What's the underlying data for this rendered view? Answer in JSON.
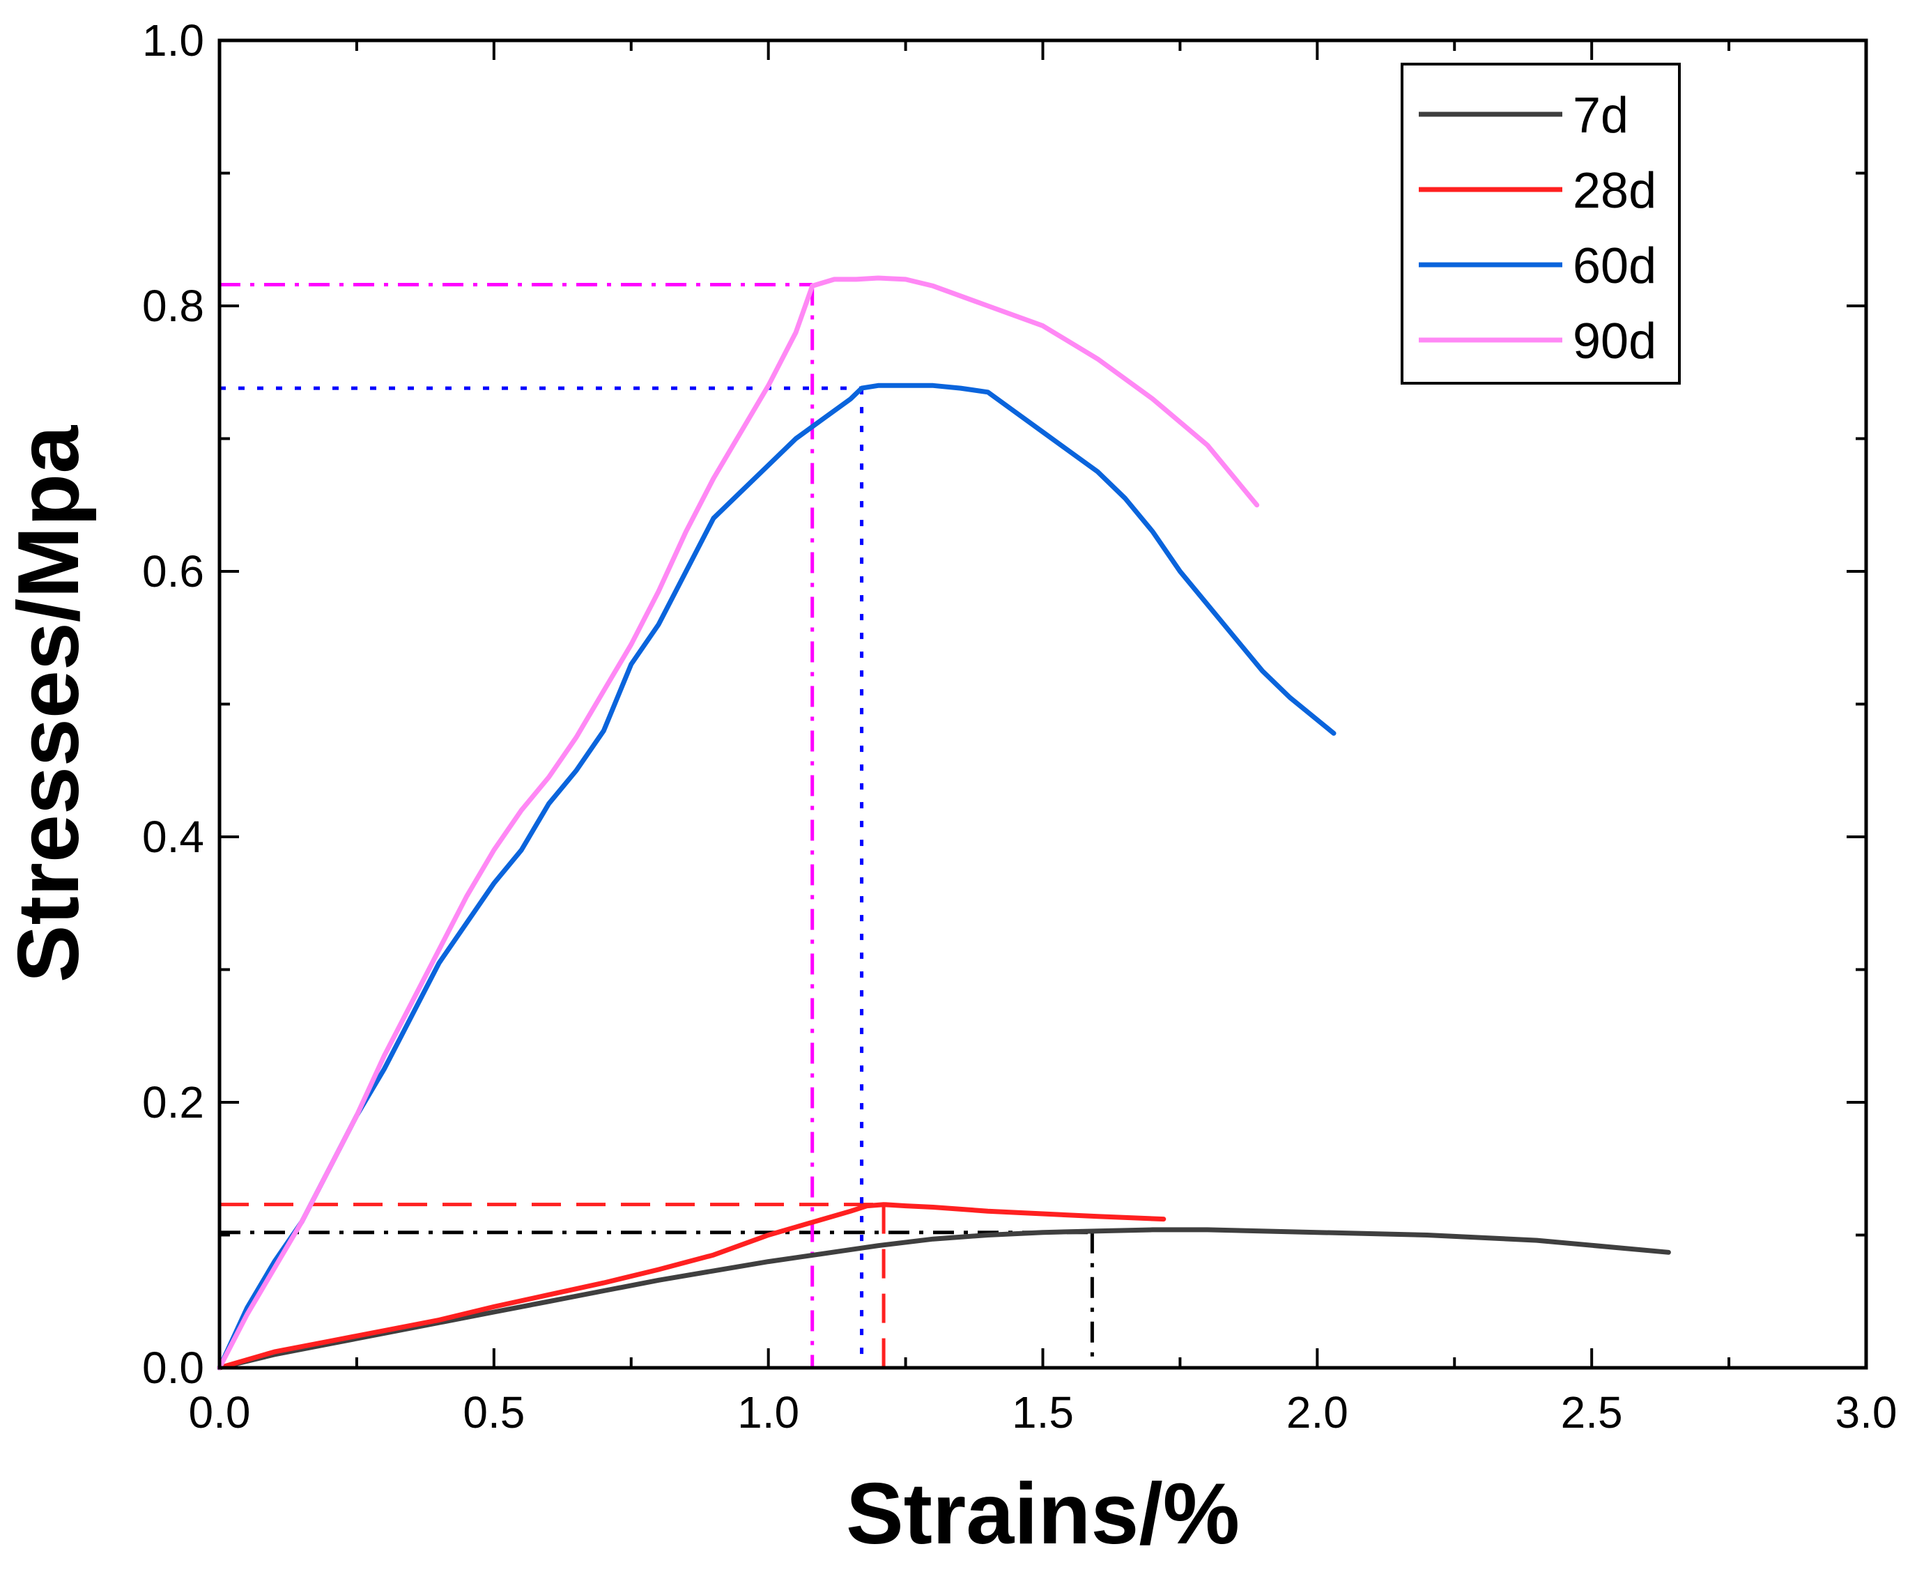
{
  "chart_data": {
    "type": "line",
    "title": "",
    "xlabel": "Strains/%",
    "ylabel": "Stresses/Mpa",
    "xlim": [
      0.0,
      3.0
    ],
    "ylim": [
      0.0,
      1.0
    ],
    "xticks": [
      "0.0",
      "0.5",
      "1.0",
      "1.5",
      "2.0",
      "2.5",
      "3.0"
    ],
    "yticks": [
      "0.0",
      "0.2",
      "0.4",
      "0.6",
      "0.8",
      "1.0"
    ],
    "legend": "top-right",
    "series": [
      {
        "name": "7d",
        "color": "#3f3f3f",
        "x": [
          0.0,
          0.1,
          0.2,
          0.3,
          0.4,
          0.5,
          0.6,
          0.7,
          0.8,
          0.9,
          1.0,
          1.1,
          1.2,
          1.3,
          1.4,
          1.5,
          1.6,
          1.7,
          1.8,
          2.0,
          2.2,
          2.4,
          2.64
        ],
        "y": [
          0.0,
          0.01,
          0.018,
          0.026,
          0.034,
          0.042,
          0.05,
          0.058,
          0.066,
          0.073,
          0.08,
          0.086,
          0.092,
          0.097,
          0.1,
          0.102,
          0.103,
          0.104,
          0.104,
          0.102,
          0.1,
          0.096,
          0.087
        ]
      },
      {
        "name": "28d",
        "color": "#ff2020",
        "x": [
          0.0,
          0.1,
          0.2,
          0.3,
          0.4,
          0.5,
          0.6,
          0.7,
          0.8,
          0.9,
          1.0,
          1.1,
          1.15,
          1.18,
          1.21,
          1.25,
          1.3,
          1.4,
          1.5,
          1.6,
          1.72
        ],
        "y": [
          0.0,
          0.012,
          0.02,
          0.028,
          0.036,
          0.046,
          0.055,
          0.064,
          0.074,
          0.085,
          0.1,
          0.112,
          0.118,
          0.122,
          0.123,
          0.122,
          0.121,
          0.118,
          0.116,
          0.114,
          0.112
        ]
      },
      {
        "name": "60d",
        "color": "#0a64dc",
        "x": [
          0.0,
          0.05,
          0.1,
          0.15,
          0.2,
          0.25,
          0.3,
          0.35,
          0.4,
          0.45,
          0.5,
          0.55,
          0.6,
          0.65,
          0.7,
          0.75,
          0.8,
          0.85,
          0.9,
          0.95,
          1.0,
          1.05,
          1.1,
          1.15,
          1.17,
          1.2,
          1.25,
          1.3,
          1.35,
          1.4,
          1.45,
          1.5,
          1.55,
          1.6,
          1.65,
          1.7,
          1.75,
          1.8,
          1.85,
          1.9,
          1.95,
          2.03
        ],
        "y": [
          0.0,
          0.045,
          0.08,
          0.11,
          0.15,
          0.19,
          0.225,
          0.265,
          0.305,
          0.335,
          0.365,
          0.39,
          0.425,
          0.45,
          0.48,
          0.53,
          0.56,
          0.6,
          0.64,
          0.66,
          0.68,
          0.7,
          0.715,
          0.73,
          0.738,
          0.74,
          0.74,
          0.74,
          0.738,
          0.735,
          0.72,
          0.705,
          0.69,
          0.675,
          0.655,
          0.63,
          0.6,
          0.575,
          0.55,
          0.525,
          0.505,
          0.478
        ]
      },
      {
        "name": "90d",
        "color": "#ff88f5",
        "x": [
          0.0,
          0.05,
          0.1,
          0.15,
          0.2,
          0.25,
          0.3,
          0.35,
          0.4,
          0.45,
          0.5,
          0.55,
          0.6,
          0.65,
          0.7,
          0.75,
          0.8,
          0.85,
          0.9,
          0.95,
          1.0,
          1.05,
          1.08,
          1.12,
          1.16,
          1.2,
          1.25,
          1.3,
          1.4,
          1.5,
          1.6,
          1.7,
          1.8,
          1.89
        ],
        "y": [
          0.0,
          0.04,
          0.075,
          0.11,
          0.15,
          0.19,
          0.235,
          0.275,
          0.315,
          0.355,
          0.39,
          0.42,
          0.445,
          0.475,
          0.51,
          0.545,
          0.585,
          0.63,
          0.67,
          0.705,
          0.74,
          0.78,
          0.815,
          0.82,
          0.82,
          0.821,
          0.82,
          0.815,
          0.8,
          0.785,
          0.76,
          0.73,
          0.695,
          0.65
        ]
      }
    ],
    "reference_lines": [
      {
        "series": "7d",
        "color": "#000000",
        "style": "dashdot",
        "x": 1.59,
        "y": 0.102
      },
      {
        "series": "28d",
        "color": "#ff2020",
        "style": "dashed",
        "x": 1.21,
        "y": 0.123
      },
      {
        "series": "60d",
        "color": "#0000ff",
        "style": "dotted",
        "x": 1.17,
        "y": 0.738
      },
      {
        "series": "90d",
        "color": "#ff00ff",
        "style": "dashdot",
        "x": 1.08,
        "y": 0.816
      }
    ]
  }
}
